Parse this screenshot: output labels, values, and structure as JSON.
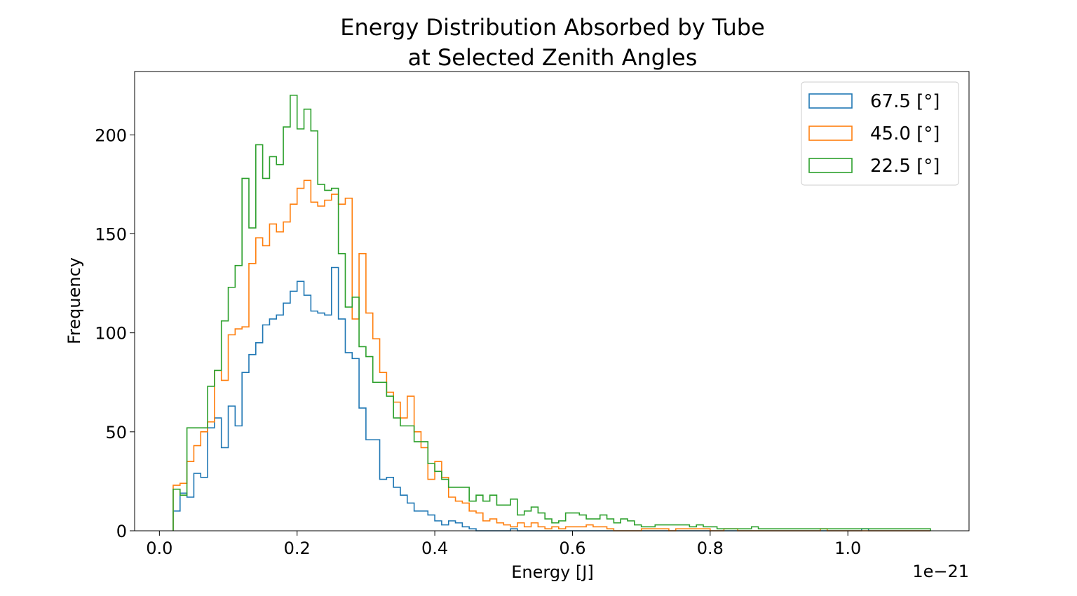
{
  "chart_data": {
    "type": "step histogram",
    "title_lines": [
      "Energy Distribution Absorbed by Tube",
      "at Selected Zenith Angles"
    ],
    "xlabel": "Energy [J]",
    "ylabel": "Frequency",
    "x_offset_text": "1e−21",
    "x_scale": 1e-21,
    "xlim": [
      -0.036,
      1.176
    ],
    "ylim": [
      0,
      232
    ],
    "x_ticks": [
      0.0,
      0.2,
      0.4,
      0.6,
      0.8,
      1.0
    ],
    "x_tick_labels": [
      "0.0",
      "0.2",
      "0.4",
      "0.6",
      "0.8",
      "1.0"
    ],
    "y_ticks": [
      0,
      50,
      100,
      150,
      200
    ],
    "y_tick_labels": [
      "0",
      "50",
      "100",
      "150",
      "200"
    ],
    "bins": {
      "start": 0.02,
      "width": 0.01,
      "count": 110
    },
    "legend": {
      "position": "top-right"
    },
    "series": [
      {
        "name": "67.5 [°]",
        "color": "#1f77b4",
        "values": [
          10,
          19,
          17,
          29,
          27,
          52,
          57,
          42,
          63,
          53,
          80,
          89,
          95,
          104,
          107,
          109,
          115,
          121,
          126,
          119,
          111,
          110,
          109,
          133,
          107,
          90,
          87,
          62,
          46,
          46,
          26,
          27,
          22,
          18,
          14,
          10,
          10,
          8,
          5,
          3,
          5,
          4,
          2,
          1,
          0,
          0,
          0,
          0,
          0,
          1,
          0,
          0,
          0,
          0,
          0,
          0,
          0,
          0,
          0,
          0,
          0,
          0,
          0,
          0,
          0,
          0,
          0,
          0,
          0,
          0,
          0,
          0,
          0,
          0,
          0,
          0,
          0,
          0,
          0,
          0,
          0,
          0,
          0,
          0,
          0,
          0,
          0,
          0,
          0,
          0,
          0,
          0,
          0,
          0,
          0,
          0,
          0,
          0,
          0,
          0,
          1,
          0,
          0,
          0,
          0,
          0,
          0,
          0,
          0,
          0
        ]
      },
      {
        "name": "45.0 [°]",
        "color": "#ff7f0e",
        "values": [
          23,
          24,
          35,
          43,
          50,
          55,
          81,
          76,
          99,
          102,
          103,
          135,
          148,
          144,
          155,
          151,
          156,
          165,
          173,
          177,
          166,
          164,
          167,
          170,
          165,
          168,
          107,
          140,
          110,
          97,
          80,
          70,
          65,
          57,
          68,
          50,
          42,
          26,
          35,
          27,
          17,
          15,
          14,
          10,
          9,
          5,
          6,
          4,
          3,
          2,
          4,
          2,
          4,
          2,
          1,
          2,
          1,
          2,
          2,
          2,
          3,
          2,
          2,
          1,
          0,
          0,
          0,
          0,
          1,
          1,
          1,
          1,
          0,
          1,
          1,
          1,
          1,
          1,
          0,
          0,
          1,
          1,
          0,
          0,
          0,
          0,
          0,
          0,
          0,
          0,
          0,
          0,
          0,
          0,
          1,
          0,
          0,
          0,
          0,
          0,
          0,
          0,
          0,
          0,
          0,
          0,
          0,
          0,
          0,
          0
        ]
      },
      {
        "name": "22.5 [°]",
        "color": "#2ca02c",
        "values": [
          21,
          18,
          52,
          52,
          52,
          73,
          81,
          106,
          123,
          134,
          178,
          153,
          195,
          178,
          189,
          185,
          204,
          220,
          203,
          213,
          202,
          175,
          172,
          173,
          140,
          113,
          118,
          93,
          88,
          75,
          75,
          68,
          57,
          53,
          53,
          45,
          45,
          34,
          30,
          26,
          22,
          22,
          22,
          15,
          18,
          15,
          18,
          13,
          13,
          16,
          8,
          10,
          12,
          9,
          6,
          4,
          5,
          9,
          9,
          8,
          6,
          6,
          8,
          6,
          4,
          6,
          5,
          3,
          2,
          2,
          3,
          3,
          3,
          3,
          3,
          2,
          3,
          2,
          2,
          1,
          1,
          1,
          1,
          1,
          2,
          1,
          1,
          1,
          1,
          1,
          1,
          1,
          1,
          1,
          1,
          1,
          1,
          1,
          1,
          1,
          1,
          1,
          1,
          1,
          1,
          1,
          1,
          1,
          1,
          1
        ]
      }
    ]
  }
}
